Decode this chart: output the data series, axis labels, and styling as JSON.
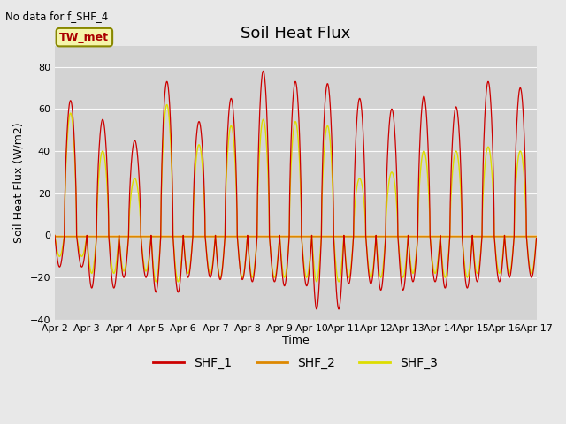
{
  "title": "Soil Heat Flux",
  "subtitle": "No data for f_SHF_4",
  "ylabel": "Soil Heat Flux (W/m2)",
  "xlabel": "Time",
  "annotation": "TW_met",
  "ylim": [
    -40,
    90
  ],
  "yticks": [
    -40,
    -20,
    0,
    20,
    40,
    60,
    80
  ],
  "bg_color": "#e8e8e8",
  "plot_bg_color": "#d3d3d3",
  "shf1_color": "#cc0000",
  "shf2_color": "#dd8800",
  "shf3_color": "#dddd00",
  "legend_labels": [
    "SHF_1",
    "SHF_2",
    "SHF_3"
  ],
  "num_days": 15,
  "points_per_day": 144,
  "shf1_peaks": [
    64,
    55,
    45,
    73,
    54,
    65,
    78,
    73,
    72,
    65,
    60,
    66,
    61,
    73,
    70
  ],
  "shf1_troughs": [
    -15,
    -25,
    -20,
    -27,
    -20,
    -21,
    -22,
    -24,
    -35,
    -23,
    -26,
    -22,
    -25,
    -22,
    -20
  ],
  "shf3_peaks": [
    58,
    40,
    27,
    62,
    43,
    52,
    55,
    54,
    52,
    27,
    30,
    40,
    40,
    42,
    40
  ],
  "shf3_troughs": [
    -10,
    -18,
    -17,
    -22,
    -18,
    -20,
    -20,
    -20,
    -22,
    -20,
    -20,
    -18,
    -20,
    -18,
    -18
  ]
}
